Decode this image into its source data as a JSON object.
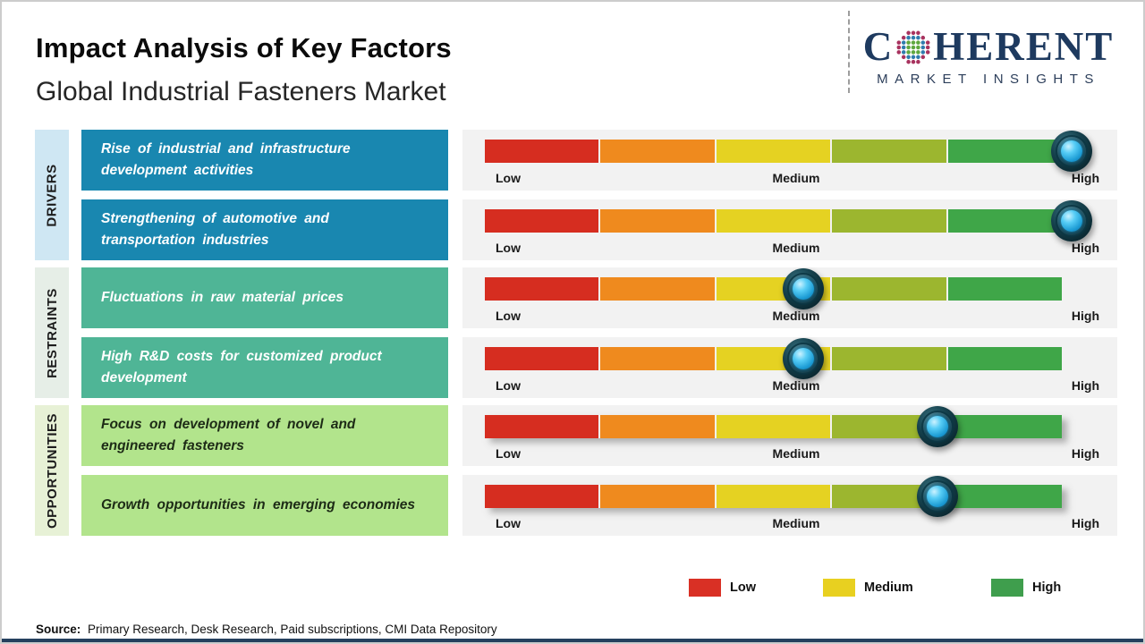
{
  "header": {
    "title": "Impact Analysis of Key Factors",
    "subtitle": "Global Industrial Fasteners Market"
  },
  "logo": {
    "brand_first": "C",
    "brand_rest": "HERENT",
    "tagline": "MARKET INSIGHTS"
  },
  "scale": {
    "low": "Low",
    "medium": "Medium",
    "high": "High"
  },
  "groups": [
    {
      "label": "DRIVERS",
      "strip_color": "#cfe7f3",
      "box_color": "#1987b0",
      "box_text_color": "#ffffff",
      "items": [
        {
          "text": "Rise of industrial and infrastructure development activities",
          "impact_level": "High",
          "impact_left": "93%"
        },
        {
          "text": "Strengthening of automotive and transportation industries",
          "impact_level": "High",
          "impact_left": "93%"
        }
      ]
    },
    {
      "label": "RESTRAINTS",
      "strip_color": "#e6eee7",
      "box_color": "#4fb596",
      "box_text_color": "#ffffff",
      "items": [
        {
          "text": "Fluctuations in raw material prices",
          "impact_level": "Medium",
          "impact_left": "52%"
        },
        {
          "text": "High R&D costs for customized product development",
          "impact_level": "Medium",
          "impact_left": "52%"
        }
      ]
    },
    {
      "label": "OPPORTUNITIES",
      "strip_color": "#e7f1d6",
      "box_color": "#b2e48c",
      "box_text_color": "#1d2b16",
      "items": [
        {
          "text": "Focus on development of novel and engineered fasteners",
          "impact_level": "Medium-High",
          "impact_left": "72.5%"
        },
        {
          "text": "Growth opportunities in emerging economies",
          "impact_level": "Medium-High",
          "impact_left": "72.5%"
        }
      ]
    }
  ],
  "slider": {
    "segment_colors": [
      "#d62d20",
      "#ef8a1e",
      "#e5d222",
      "#9cb62f",
      "#3fa648"
    ],
    "marker_colors": {
      "outer": "#0e2f39",
      "inner": "#2bb1e8"
    }
  },
  "legend": {
    "items": [
      {
        "label": "Low",
        "color": "#d93025"
      },
      {
        "label": "Medium",
        "color": "#e8d020"
      },
      {
        "label": "High",
        "color": "#3f9e4d"
      }
    ]
  },
  "source": {
    "label": "Source:",
    "text": " Primary Research, Desk Research, Paid subscriptions, CMI Data Repository"
  },
  "chart_data": {
    "type": "table",
    "title": "Impact Analysis of Key Factors",
    "subtitle": "Global Industrial Fasteners Market",
    "scale": [
      "Low",
      "Medium",
      "High"
    ],
    "rows": [
      {
        "category": "DRIVERS",
        "factor": "Rise of industrial and infrastructure development activities",
        "impact": "High",
        "position_pct": 93
      },
      {
        "category": "DRIVERS",
        "factor": "Strengthening of automotive and transportation industries",
        "impact": "High",
        "position_pct": 93
      },
      {
        "category": "RESTRAINTS",
        "factor": "Fluctuations in raw material prices",
        "impact": "Medium",
        "position_pct": 52
      },
      {
        "category": "RESTRAINTS",
        "factor": "High R&D costs for customized product development",
        "impact": "Medium",
        "position_pct": 52
      },
      {
        "category": "OPPORTUNITIES",
        "factor": "Focus on development of novel and engineered fasteners",
        "impact": "Medium-High",
        "position_pct": 72.5
      },
      {
        "category": "OPPORTUNITIES",
        "factor": "Growth opportunities in emerging economies",
        "impact": "Medium-High",
        "position_pct": 72.5
      }
    ]
  }
}
